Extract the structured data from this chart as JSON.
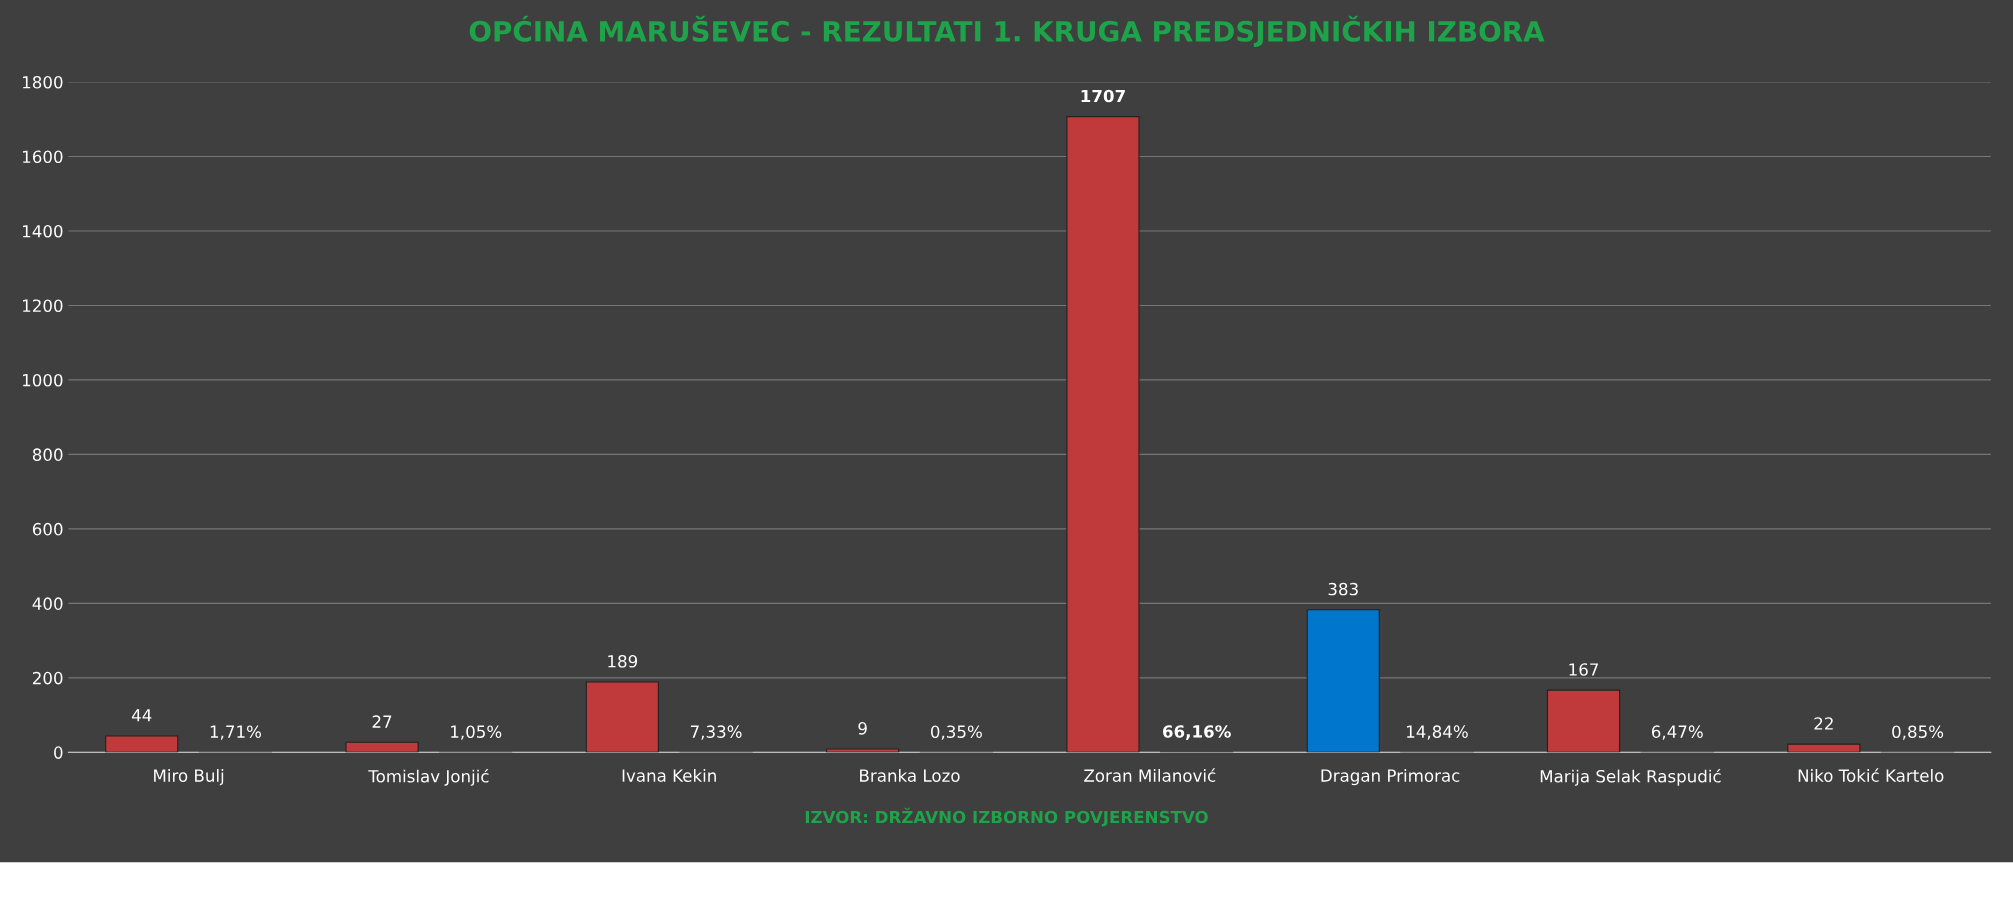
{
  "chart_data": {
    "type": "bar",
    "title": "OPĆINA MARUŠEVEC - REZULTATI 1. KRUGA PREDSJEDNIČKIH IZBORA",
    "categories": [
      "Miro Bulj",
      "Tomislav Jonjić",
      "Ivana Kekin",
      "Branka Lozo",
      "Zoran Milanović",
      "Dragan Primorac",
      "Marija Selak Raspudić",
      "Niko Tokić Kartelo"
    ],
    "series": [
      {
        "colors": [
          "#c0393b",
          "#c0393b",
          "#c0393b",
          "#c0393b",
          "#c0393b",
          "#0077cc",
          "#c0393b",
          "#c0393b"
        ],
        "values": [
          44,
          27,
          189,
          9,
          1707,
          383,
          167,
          22
        ],
        "value_labels": [
          "44",
          "27",
          "189",
          "9",
          "1707",
          "383",
          "167",
          "22"
        ]
      },
      {
        "color": "#d9a0a0",
        "values": [
          0.0171,
          0.0105,
          0.0733,
          0.0035,
          0.6616,
          0.1484,
          0.0647,
          0.0085
        ],
        "value_labels": [
          "1,71%",
          "1,05%",
          "7,33%",
          "0,35%",
          "66,16%",
          "14,84%",
          "6,47%",
          "0,85%"
        ]
      }
    ],
    "ylim": [
      0,
      1800
    ],
    "yticks": [
      0,
      200,
      400,
      600,
      800,
      1000,
      1200,
      1400,
      1600,
      1800
    ],
    "grid": "y",
    "legend": false,
    "annotations": [
      "IZVOR: DRŽAVNO IZBORNO POVJERENSTVO"
    ]
  }
}
